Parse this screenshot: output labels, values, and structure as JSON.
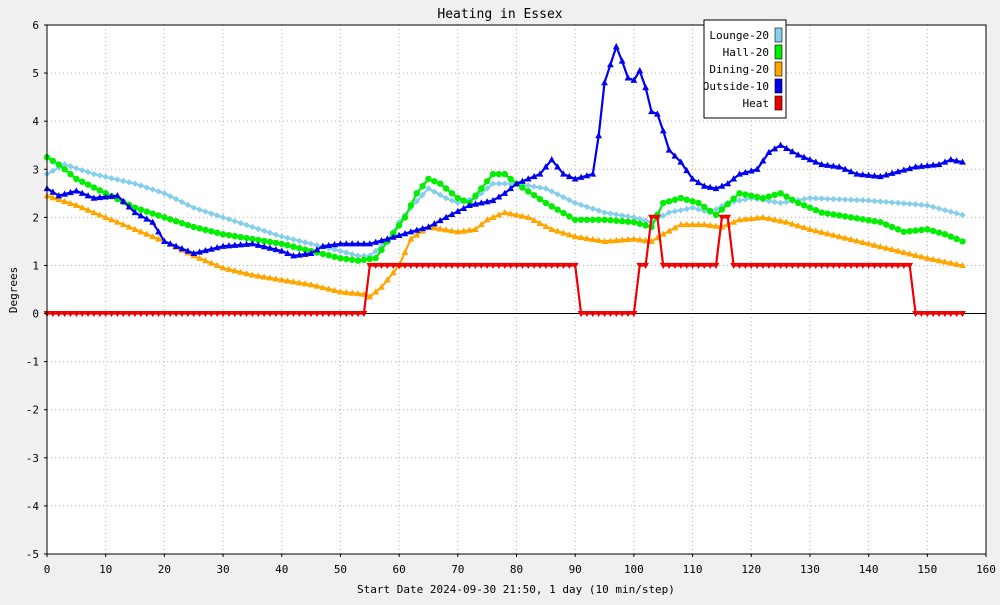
{
  "chart_data": {
    "type": "line",
    "title": "Heating in Essex",
    "xlabel": "Start Date 2024-09-30 21:50, 1 day (10 min/step)",
    "ylabel": "Degrees",
    "xlim": [
      0,
      160
    ],
    "ylim": [
      -5,
      6
    ],
    "x_ticks": [
      0,
      10,
      20,
      30,
      40,
      50,
      60,
      70,
      80,
      90,
      100,
      110,
      120,
      130,
      140,
      150,
      160
    ],
    "y_ticks": [
      -5,
      -4,
      -3,
      -2,
      -1,
      0,
      1,
      2,
      3,
      4,
      5,
      6
    ],
    "grid": true,
    "legend_position": "top-right",
    "series": [
      {
        "name": "Lounge-20",
        "color": "#87ceeb",
        "marker": "diamond",
        "points": [
          [
            0,
            2.9
          ],
          [
            3,
            3.1
          ],
          [
            8,
            2.9
          ],
          [
            15,
            2.7
          ],
          [
            20,
            2.5
          ],
          [
            25,
            2.2
          ],
          [
            30,
            2.0
          ],
          [
            35,
            1.8
          ],
          [
            40,
            1.6
          ],
          [
            45,
            1.45
          ],
          [
            50,
            1.3
          ],
          [
            53,
            1.2
          ],
          [
            55,
            1.2
          ],
          [
            58,
            1.5
          ],
          [
            60,
            1.9
          ],
          [
            62,
            2.2
          ],
          [
            65,
            2.6
          ],
          [
            68,
            2.4
          ],
          [
            70,
            2.3
          ],
          [
            73,
            2.4
          ],
          [
            76,
            2.7
          ],
          [
            80,
            2.7
          ],
          [
            85,
            2.6
          ],
          [
            90,
            2.3
          ],
          [
            95,
            2.1
          ],
          [
            100,
            2.0
          ],
          [
            103,
            1.9
          ],
          [
            106,
            2.1
          ],
          [
            110,
            2.2
          ],
          [
            113,
            2.1
          ],
          [
            116,
            2.3
          ],
          [
            120,
            2.4
          ],
          [
            125,
            2.3
          ],
          [
            130,
            2.4
          ],
          [
            140,
            2.35
          ],
          [
            150,
            2.25
          ],
          [
            156,
            2.05
          ]
        ]
      },
      {
        "name": "Hall-20",
        "color": "#00ee00",
        "marker": "circle",
        "points": [
          [
            0,
            3.25
          ],
          [
            2,
            3.1
          ],
          [
            5,
            2.8
          ],
          [
            10,
            2.5
          ],
          [
            15,
            2.2
          ],
          [
            20,
            2.0
          ],
          [
            25,
            1.8
          ],
          [
            30,
            1.65
          ],
          [
            35,
            1.55
          ],
          [
            40,
            1.45
          ],
          [
            45,
            1.3
          ],
          [
            50,
            1.15
          ],
          [
            53,
            1.1
          ],
          [
            56,
            1.15
          ],
          [
            58,
            1.5
          ],
          [
            61,
            2.0
          ],
          [
            63,
            2.5
          ],
          [
            65,
            2.8
          ],
          [
            67,
            2.7
          ],
          [
            70,
            2.4
          ],
          [
            72,
            2.3
          ],
          [
            74,
            2.6
          ],
          [
            76,
            2.9
          ],
          [
            78,
            2.9
          ],
          [
            80,
            2.7
          ],
          [
            85,
            2.3
          ],
          [
            90,
            1.95
          ],
          [
            95,
            1.95
          ],
          [
            100,
            1.9
          ],
          [
            103,
            1.8
          ],
          [
            105,
            2.3
          ],
          [
            108,
            2.4
          ],
          [
            111,
            2.3
          ],
          [
            114,
            2.05
          ],
          [
            118,
            2.5
          ],
          [
            122,
            2.4
          ],
          [
            125,
            2.5
          ],
          [
            128,
            2.3
          ],
          [
            132,
            2.1
          ],
          [
            137,
            2.0
          ],
          [
            142,
            1.9
          ],
          [
            146,
            1.7
          ],
          [
            150,
            1.75
          ],
          [
            153,
            1.65
          ],
          [
            156,
            1.5
          ]
        ]
      },
      {
        "name": "Dining-20",
        "color": "#ffa500",
        "marker": "triangle-up",
        "points": [
          [
            0,
            2.45
          ],
          [
            5,
            2.25
          ],
          [
            10,
            2.0
          ],
          [
            15,
            1.75
          ],
          [
            20,
            1.5
          ],
          [
            25,
            1.2
          ],
          [
            30,
            0.95
          ],
          [
            35,
            0.8
          ],
          [
            40,
            0.7
          ],
          [
            45,
            0.6
          ],
          [
            50,
            0.45
          ],
          [
            54,
            0.4
          ],
          [
            55,
            0.35
          ],
          [
            57,
            0.55
          ],
          [
            60,
            1.0
          ],
          [
            62,
            1.55
          ],
          [
            65,
            1.8
          ],
          [
            70,
            1.7
          ],
          [
            73,
            1.75
          ],
          [
            75,
            1.95
          ],
          [
            78,
            2.1
          ],
          [
            82,
            2.0
          ],
          [
            86,
            1.75
          ],
          [
            90,
            1.6
          ],
          [
            95,
            1.5
          ],
          [
            100,
            1.55
          ],
          [
            103,
            1.5
          ],
          [
            105,
            1.65
          ],
          [
            108,
            1.85
          ],
          [
            112,
            1.85
          ],
          [
            115,
            1.8
          ],
          [
            118,
            1.95
          ],
          [
            122,
            2.0
          ],
          [
            126,
            1.9
          ],
          [
            130,
            1.75
          ],
          [
            135,
            1.6
          ],
          [
            140,
            1.45
          ],
          [
            145,
            1.3
          ],
          [
            150,
            1.15
          ],
          [
            156,
            1.0
          ]
        ]
      },
      {
        "name": "Outside-10",
        "color": "#0000ee",
        "marker": "triangle-up",
        "points": [
          [
            0,
            2.6
          ],
          [
            2,
            2.45
          ],
          [
            5,
            2.55
          ],
          [
            8,
            2.4
          ],
          [
            12,
            2.45
          ],
          [
            15,
            2.1
          ],
          [
            18,
            1.9
          ],
          [
            20,
            1.5
          ],
          [
            23,
            1.35
          ],
          [
            25,
            1.25
          ],
          [
            30,
            1.4
          ],
          [
            35,
            1.45
          ],
          [
            40,
            1.3
          ],
          [
            42,
            1.2
          ],
          [
            45,
            1.25
          ],
          [
            47,
            1.4
          ],
          [
            50,
            1.45
          ],
          [
            55,
            1.45
          ],
          [
            58,
            1.55
          ],
          [
            62,
            1.7
          ],
          [
            65,
            1.8
          ],
          [
            68,
            2.0
          ],
          [
            72,
            2.25
          ],
          [
            76,
            2.35
          ],
          [
            78,
            2.5
          ],
          [
            80,
            2.7
          ],
          [
            84,
            2.9
          ],
          [
            86,
            3.2
          ],
          [
            88,
            2.9
          ],
          [
            90,
            2.8
          ],
          [
            93,
            2.9
          ],
          [
            94,
            3.7
          ],
          [
            95,
            4.8
          ],
          [
            97,
            5.55
          ],
          [
            98,
            5.25
          ],
          [
            99,
            4.9
          ],
          [
            100,
            4.85
          ],
          [
            101,
            5.05
          ],
          [
            102,
            4.7
          ],
          [
            103,
            4.2
          ],
          [
            104,
            4.15
          ],
          [
            105,
            3.8
          ],
          [
            106,
            3.4
          ],
          [
            108,
            3.15
          ],
          [
            110,
            2.8
          ],
          [
            112,
            2.65
          ],
          [
            114,
            2.6
          ],
          [
            116,
            2.7
          ],
          [
            118,
            2.9
          ],
          [
            121,
            3.0
          ],
          [
            123,
            3.35
          ],
          [
            125,
            3.5
          ],
          [
            128,
            3.3
          ],
          [
            132,
            3.1
          ],
          [
            135,
            3.05
          ],
          [
            138,
            2.9
          ],
          [
            142,
            2.85
          ],
          [
            145,
            2.95
          ],
          [
            148,
            3.05
          ],
          [
            152,
            3.1
          ],
          [
            154,
            3.2
          ],
          [
            156,
            3.15
          ]
        ]
      },
      {
        "name": "Heat",
        "color": "#ee0000",
        "marker": "triangle-down",
        "points": [
          [
            0,
            0
          ],
          [
            54,
            0
          ],
          [
            55,
            1
          ],
          [
            90,
            1
          ],
          [
            91,
            0
          ],
          [
            100,
            0
          ],
          [
            101,
            1
          ],
          [
            102,
            1
          ],
          [
            103,
            2
          ],
          [
            104,
            2
          ],
          [
            105,
            1
          ],
          [
            114,
            1
          ],
          [
            115,
            2
          ],
          [
            116,
            2
          ],
          [
            117,
            1
          ],
          [
            147,
            1
          ],
          [
            148,
            0
          ],
          [
            156,
            0
          ]
        ]
      }
    ]
  }
}
